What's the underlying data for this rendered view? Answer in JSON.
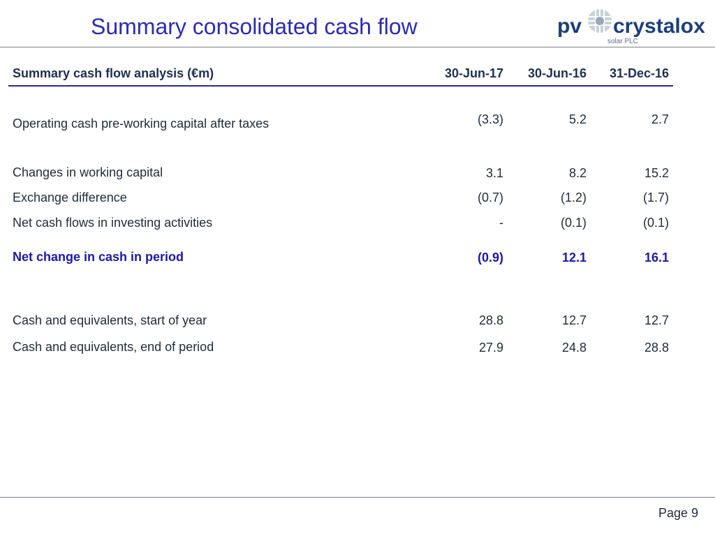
{
  "slide": {
    "title": "Summary consolidated cash flow",
    "page": "Page 9"
  },
  "logo": {
    "brand_left": "pv",
    "brand_right": "crystalox",
    "subtitle": "solar PLC",
    "colors": {
      "navy": "#1b3f7a",
      "sun": "#9aa6b6"
    }
  },
  "table": {
    "header": {
      "label": "Summary cash flow analysis (€m)",
      "columns": [
        "30-Jun-17",
        "30-Jun-16",
        "31-Dec-16"
      ]
    },
    "rows": [
      {
        "label": "Operating cash pre-working capital after taxes",
        "values": [
          "(3.3)",
          "5.2",
          "2.7"
        ]
      },
      {
        "label": "Changes in working capital",
        "values": [
          "3.1",
          "8.2",
          "15.2"
        ]
      },
      {
        "label": "Exchange difference",
        "values": [
          "(0.7)",
          "(1.2)",
          "(1.7)"
        ]
      },
      {
        "label": "Net cash flows in investing activities",
        "values": [
          "-",
          "(0.1)",
          "(0.1)"
        ]
      },
      {
        "label": "Net change in cash in period",
        "values": [
          "(0.9)",
          "12.1",
          "16.1"
        ]
      },
      {
        "label": "Cash and equivalents, start of year",
        "values": [
          "28.8",
          "12.7",
          "12.7"
        ]
      },
      {
        "label": "Cash and equivalents, end of period",
        "values": [
          "27.9",
          "24.8",
          "28.8"
        ]
      }
    ]
  },
  "colors": {
    "title_blue": "#2b2bb5",
    "total_blue": "#1a1aa8",
    "rule_navy": "#2a2a9a"
  }
}
